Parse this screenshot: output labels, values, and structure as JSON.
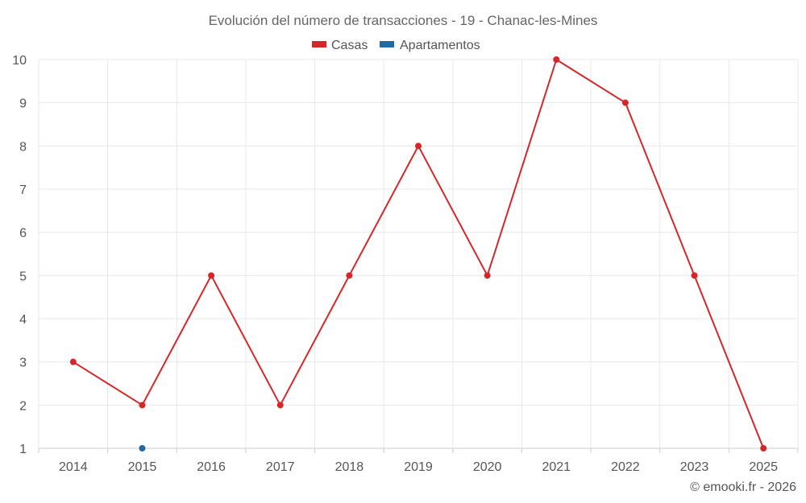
{
  "chart_data": {
    "type": "line",
    "title": "Evolución del número de transacciones - 19 - Chanac-les-Mines",
    "categories": [
      "2014",
      "2015",
      "2016",
      "2017",
      "2018",
      "2019",
      "2020",
      "2021",
      "2022",
      "2023",
      "2025"
    ],
    "series": [
      {
        "name": "Casas",
        "color": "#d62728",
        "values": [
          3,
          2,
          5,
          2,
          5,
          8,
          5,
          10,
          9,
          5,
          1
        ]
      },
      {
        "name": "Apartamentos",
        "color": "#1f6aa5",
        "values": [
          null,
          1,
          null,
          null,
          null,
          null,
          null,
          null,
          null,
          null,
          null
        ]
      }
    ],
    "ylim": [
      1,
      10
    ],
    "yticks": [
      "1",
      "2",
      "3",
      "4",
      "5",
      "6",
      "7",
      "8",
      "9",
      "10"
    ],
    "xlabel": "",
    "ylabel": "",
    "grid": true,
    "legend_position": "top-center"
  },
  "credit": "© emooki.fr - 2026"
}
